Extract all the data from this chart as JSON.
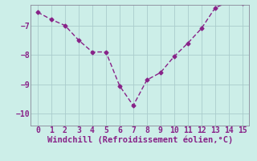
{
  "x": [
    0,
    1,
    2,
    3,
    4,
    5,
    6,
    7,
    8,
    9,
    10,
    11,
    12,
    13,
    14,
    15
  ],
  "y": [
    -6.55,
    -6.8,
    -7.0,
    -7.5,
    -7.9,
    -7.9,
    -9.05,
    -9.72,
    -8.85,
    -8.6,
    -8.05,
    -7.6,
    -7.1,
    -6.4,
    -6.2,
    -6.25
  ],
  "line_color": "#882288",
  "marker": "D",
  "marker_size": 2.5,
  "bg_color": "#cceee8",
  "grid_color": "#aacccc",
  "spine_color": "#888899",
  "xlabel": "Windchill (Refroidissement éolien,°C)",
  "xlabel_color": "#882288",
  "xlabel_fontsize": 7.5,
  "tick_color": "#882288",
  "tick_fontsize": 7,
  "ylim": [
    -10.4,
    -6.3
  ],
  "xlim": [
    -0.5,
    15.5
  ],
  "yticks": [
    -10,
    -9,
    -8,
    -7
  ],
  "xticks": [
    0,
    1,
    2,
    3,
    4,
    5,
    6,
    7,
    8,
    9,
    10,
    11,
    12,
    13,
    14,
    15
  ],
  "line_width": 1.0,
  "dash_pattern": [
    4,
    2
  ]
}
